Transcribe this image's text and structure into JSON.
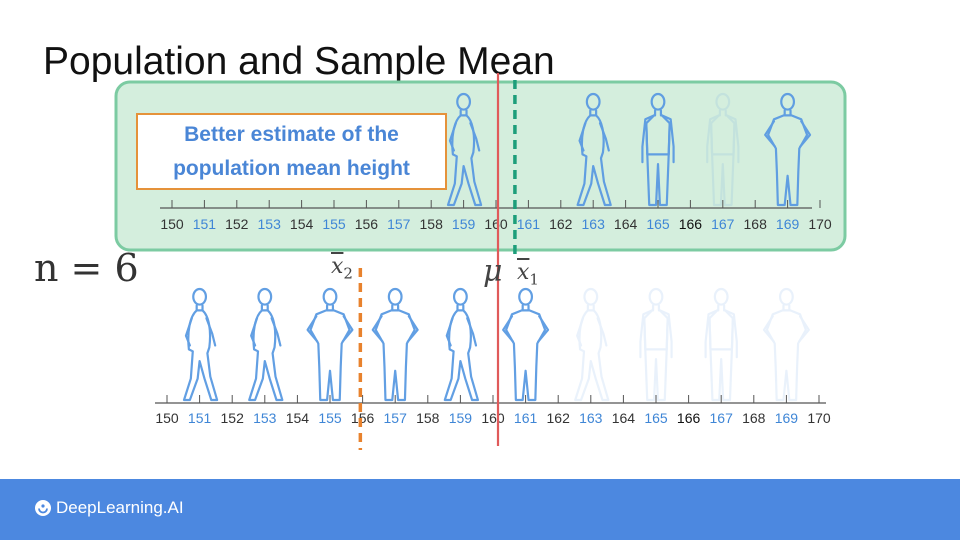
{
  "slide": {
    "title": "Population and Sample Mean",
    "callout": "Better estimate of the\npopulation mean height",
    "n_label": "n = 6",
    "symbols": {
      "mu": "μ",
      "xbar1": "x",
      "xbar1_sub": "1",
      "xbar2": "x",
      "xbar2_sub": "2"
    }
  },
  "population_axis": {
    "ticks": [
      "150",
      "151",
      "152",
      "153",
      "154",
      "155",
      "156",
      "157",
      "158",
      "159",
      "160",
      "161",
      "162",
      "163",
      "164",
      "165",
      "166",
      "167",
      "168",
      "169",
      "170"
    ],
    "odd_color": "#3f86d6",
    "even_color": "#333333",
    "highlight": {
      "166": "#111111"
    }
  },
  "sample_axis": {
    "ticks": [
      "150",
      "151",
      "152",
      "153",
      "154",
      "155",
      "156",
      "157",
      "158",
      "159",
      "160",
      "161",
      "162",
      "163",
      "164",
      "165",
      "166",
      "167",
      "168",
      "169",
      "170"
    ]
  },
  "population_people": [
    {
      "height": 159,
      "pose": "walking",
      "faded": false
    },
    {
      "height": 163,
      "pose": "walking",
      "faded": false
    },
    {
      "height": 165,
      "pose": "standing",
      "faded": false
    },
    {
      "height": 167,
      "pose": "standing",
      "faded": true
    },
    {
      "height": 169,
      "pose": "hands-on-hips",
      "faded": false
    }
  ],
  "sample_people": [
    {
      "height": 151,
      "pose": "walking",
      "faded": false
    },
    {
      "height": 153,
      "pose": "walking",
      "faded": false
    },
    {
      "height": 155,
      "pose": "hands-on-hips",
      "faded": false
    },
    {
      "height": 157,
      "pose": "hands-on-hips",
      "faded": false
    },
    {
      "height": 159,
      "pose": "walking",
      "faded": false
    },
    {
      "height": 161,
      "pose": "hands-on-hips",
      "faded": false
    },
    {
      "height": 163,
      "pose": "walking",
      "faded": true
    },
    {
      "height": 165,
      "pose": "standing",
      "faded": true
    },
    {
      "height": 167,
      "pose": "standing",
      "faded": true
    },
    {
      "height": 169,
      "pose": "hands-on-hips",
      "faded": true
    }
  ],
  "markers": {
    "mu": 160,
    "xbar1": 160.8,
    "xbar2": 155.9
  },
  "colors": {
    "mu_line": "#e05a5a",
    "xbar1_line": "#1d9e7a",
    "xbar2_line": "#e8822d",
    "highlight_fill": "#d4eedd",
    "highlight_border": "#7ccba2",
    "callout_border": "#e5923a",
    "callout_text": "#4a86d6",
    "person_stroke": "#5a9ae2",
    "footer_bg": "#4c88e0"
  },
  "footer": {
    "logo_text": "DeepLearning.AI",
    "logo_icon": "deeplearning-logo-icon"
  }
}
